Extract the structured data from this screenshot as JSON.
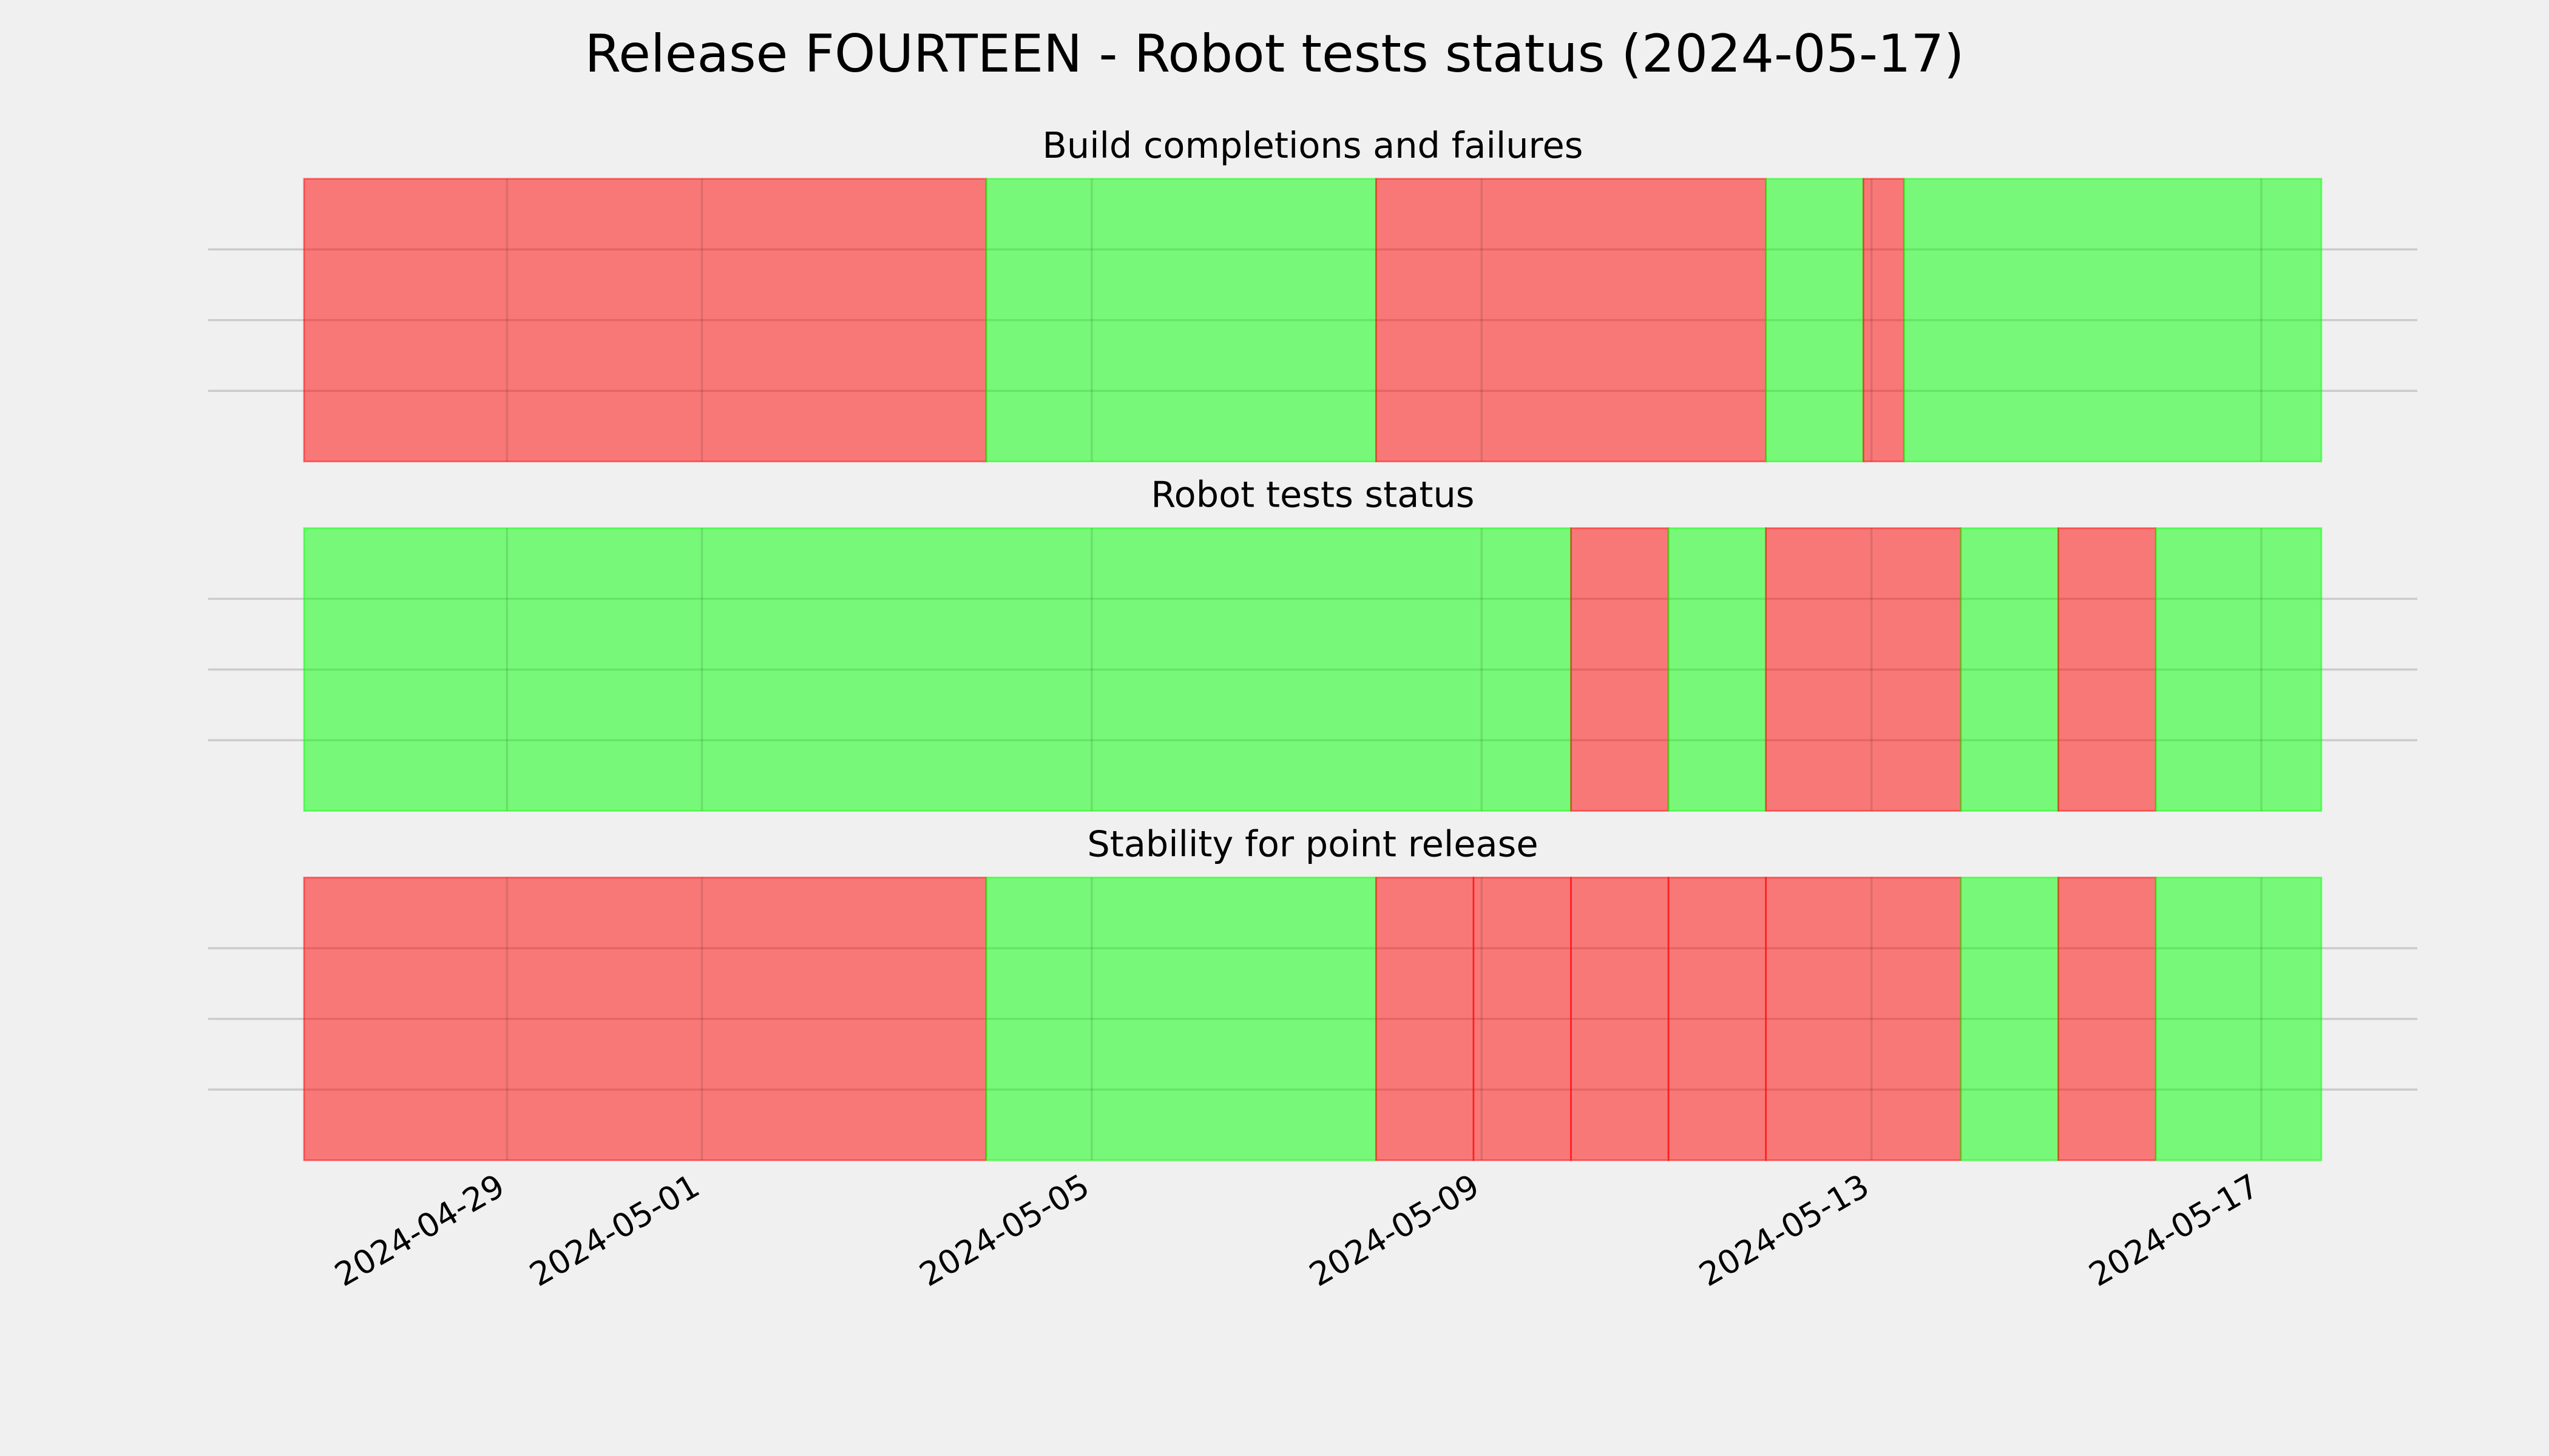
{
  "title": "Release FOURTEEN - Robot tests status (2024-05-17)",
  "chart_data": [
    {
      "type": "timeline",
      "title": "Build completions and failures",
      "xlim": [
        "2024-04-26 22:00",
        "2024-05-17 14:48"
      ],
      "xticks": [
        "2024-04-29",
        "2024-05-01",
        "2024-05-05",
        "2024-05-09",
        "2024-05-13",
        "2024-05-17"
      ],
      "ylim": [
        0,
        1
      ],
      "yticks": [
        0.25,
        0.5,
        0.75
      ],
      "grid": true,
      "alpha": 0.5,
      "segments": [
        {
          "start": "2024-04-26 22:00",
          "end": "2024-05-03 22:00",
          "color": "#ff0000"
        },
        {
          "start": "2024-05-03 22:00",
          "end": "2024-05-07 22:00",
          "color": "#00ff00"
        },
        {
          "start": "2024-05-07 22:00",
          "end": "2024-05-11 22:00",
          "color": "#ff0000"
        },
        {
          "start": "2024-05-11 22:00",
          "end": "2024-05-12 22:00",
          "color": "#00ff00"
        },
        {
          "start": "2024-05-12 22:00",
          "end": "2024-05-13 08:00",
          "color": "#ff0000"
        },
        {
          "start": "2024-05-13 08:00",
          "end": "2024-05-17 14:48",
          "color": "#00ff00"
        }
      ]
    },
    {
      "type": "timeline",
      "title": "Robot tests status",
      "xlim": [
        "2024-04-26 22:00",
        "2024-05-17 14:48"
      ],
      "xticks": [
        "2024-04-29",
        "2024-05-01",
        "2024-05-05",
        "2024-05-09",
        "2024-05-13",
        "2024-05-17"
      ],
      "ylim": [
        0,
        1
      ],
      "yticks": [
        0.25,
        0.5,
        0.75
      ],
      "grid": true,
      "alpha": 0.5,
      "segments": [
        {
          "start": "2024-04-26 22:00",
          "end": "2024-05-09 22:00",
          "color": "#00ff00"
        },
        {
          "start": "2024-05-09 22:00",
          "end": "2024-05-10 22:00",
          "color": "#ff0000"
        },
        {
          "start": "2024-05-10 22:00",
          "end": "2024-05-11 22:00",
          "color": "#00ff00"
        },
        {
          "start": "2024-05-11 22:00",
          "end": "2024-05-13 22:00",
          "color": "#ff0000"
        },
        {
          "start": "2024-05-13 22:00",
          "end": "2024-05-14 22:00",
          "color": "#00ff00"
        },
        {
          "start": "2024-05-14 22:00",
          "end": "2024-05-15 22:00",
          "color": "#ff0000"
        },
        {
          "start": "2024-05-15 22:00",
          "end": "2024-05-17 14:48",
          "color": "#00ff00"
        }
      ]
    },
    {
      "type": "timeline",
      "title": "Stability for point release",
      "xlim": [
        "2024-04-26 22:00",
        "2024-05-17 14:48"
      ],
      "xticks": [
        "2024-04-29",
        "2024-05-01",
        "2024-05-05",
        "2024-05-09",
        "2024-05-13",
        "2024-05-17"
      ],
      "ylim": [
        0,
        1
      ],
      "yticks": [
        0.25,
        0.5,
        0.75
      ],
      "grid": true,
      "alpha": 0.5,
      "segments": [
        {
          "start": "2024-04-26 22:00",
          "end": "2024-05-03 22:00",
          "color": "#ff0000"
        },
        {
          "start": "2024-05-03 22:00",
          "end": "2024-05-07 22:00",
          "color": "#00ff00"
        },
        {
          "start": "2024-05-07 22:00",
          "end": "2024-05-08 22:00",
          "color": "#ff0000"
        },
        {
          "start": "2024-05-08 22:00",
          "end": "2024-05-09 22:00",
          "color": "#ff0000"
        },
        {
          "start": "2024-05-09 22:00",
          "end": "2024-05-10 22:00",
          "color": "#ff0000"
        },
        {
          "start": "2024-05-10 22:00",
          "end": "2024-05-11 22:00",
          "color": "#ff0000"
        },
        {
          "start": "2024-05-11 22:00",
          "end": "2024-05-13 22:00",
          "color": "#ff0000"
        },
        {
          "start": "2024-05-13 22:00",
          "end": "2024-05-14 22:00",
          "color": "#00ff00"
        },
        {
          "start": "2024-05-14 22:00",
          "end": "2024-05-15 22:00",
          "color": "#ff0000"
        },
        {
          "start": "2024-05-15 22:00",
          "end": "2024-05-17 14:48",
          "color": "#00ff00"
        }
      ]
    }
  ]
}
